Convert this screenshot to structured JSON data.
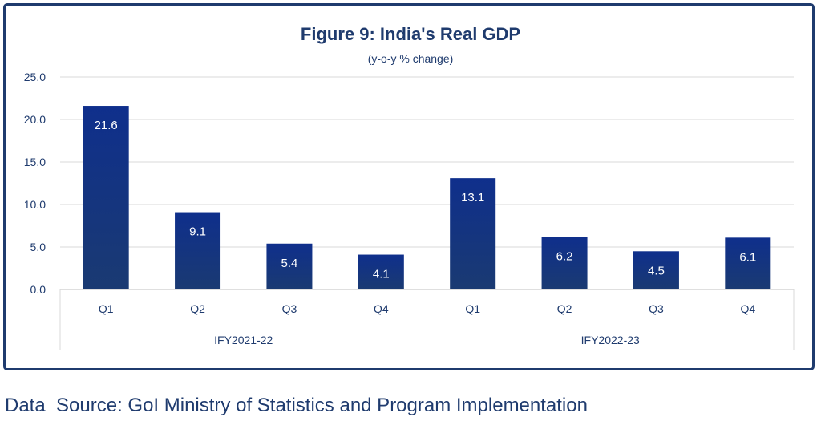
{
  "chart_data": {
    "type": "bar",
    "title": "Figure 9: India's Real GDP",
    "subtitle": "(y-o-y % change)",
    "categories": [
      "Q1",
      "Q2",
      "Q3",
      "Q4",
      "Q1",
      "Q2",
      "Q3",
      "Q4"
    ],
    "groups": [
      {
        "label": "IFY2021-22",
        "categories": [
          "Q1",
          "Q2",
          "Q3",
          "Q4"
        ]
      },
      {
        "label": "IFY2022-23",
        "categories": [
          "Q1",
          "Q2",
          "Q3",
          "Q4"
        ]
      }
    ],
    "values": [
      21.6,
      9.1,
      5.4,
      4.1,
      13.1,
      6.2,
      4.5,
      6.1
    ],
    "data_labels": [
      "21.6",
      "9.1",
      "5.4",
      "4.1",
      "13.1",
      "6.2",
      "4.5",
      "6.1"
    ],
    "ylim": [
      0,
      25
    ],
    "yticks": [
      "0.0",
      "5.0",
      "10.0",
      "15.0",
      "20.0",
      "25.0"
    ],
    "grid": true,
    "colors": {
      "bar_top": "#0f2f8c",
      "bar_bottom": "#1a3a72",
      "text": "#1f3b6e",
      "grid": "#d9d9d9"
    }
  },
  "source_text": "Data  Source: GoI Ministry of Statistics and Program Implementation"
}
